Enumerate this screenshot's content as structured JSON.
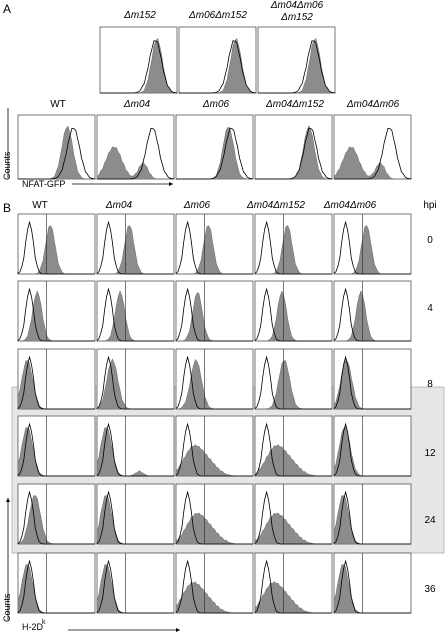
{
  "panel_a": {
    "letter": "A",
    "top_row_labels": [
      "Δm152",
      "Δm06Δm152",
      "Δm04Δm06",
      "Δm152"
    ],
    "bottom_row_labels": [
      "WT",
      "Δm04",
      "Δm06",
      "Δm04Δm152",
      "Δm04Δm06"
    ],
    "y_axis_label": "Counts",
    "x_axis_label": "NFAT-GFP"
  },
  "panel_b": {
    "letter": "B",
    "column_labels": [
      "WT",
      "Δm04",
      "Δm06",
      "Δm04Δm152",
      "Δm04Δm06"
    ],
    "hpi_header": "hpi",
    "hpi_values": [
      "0",
      "4",
      "8",
      "12",
      "24",
      "36"
    ],
    "y_axis_label": "Counts",
    "x_axis_label": "H-2D",
    "x_axis_superscript": "k"
  },
  "colors": {
    "filled_histogram": "#8c8c8c",
    "open_histogram_line": "#000000",
    "highlight_band": "#e6e6e6",
    "frame": "#555555"
  },
  "chart_data": {
    "type": "histogram-grid",
    "panel_a": {
      "top_row": [
        {
          "label": "Δm152",
          "filled_peak": 0.74,
          "open_peak": 0.72
        },
        {
          "label": "Δm06Δm152",
          "filled_peak": 0.74,
          "open_peak": 0.72
        },
        {
          "label": "Δm04Δm06Δm152",
          "filled_peak": 0.74,
          "open_peak": 0.72
        }
      ],
      "bottom_row": [
        {
          "label": "WT",
          "filled_peak": 0.64,
          "open_peak": 0.72
        },
        {
          "label": "Δm04",
          "filled_peak": 0.22,
          "open_peak": 0.72
        },
        {
          "label": "Δm06",
          "filled_peak": 0.68,
          "open_peak": 0.72
        },
        {
          "label": "Δm04Δm152",
          "filled_peak": 0.7,
          "open_peak": 0.72
        },
        {
          "label": "Δm04Δm06",
          "filled_peak": 0.22,
          "open_peak": 0.72
        }
      ]
    },
    "panel_b": {
      "note": "filled = H-2Dk stained, open = control; peak positions on log scale fraction",
      "filled_peaks": [
        [
          0.42,
          0.42,
          0.42,
          0.42,
          0.42
        ],
        [
          0.25,
          0.3,
          0.28,
          0.35,
          0.35
        ],
        [
          0.12,
          0.2,
          0.26,
          0.38,
          0.16
        ],
        [
          0.12,
          0.12,
          0.22,
          0.26,
          0.14
        ],
        [
          0.22,
          0.12,
          0.25,
          0.25,
          0.12
        ],
        [
          0.12,
          0.12,
          0.2,
          0.22,
          0.12
        ]
      ]
    }
  }
}
